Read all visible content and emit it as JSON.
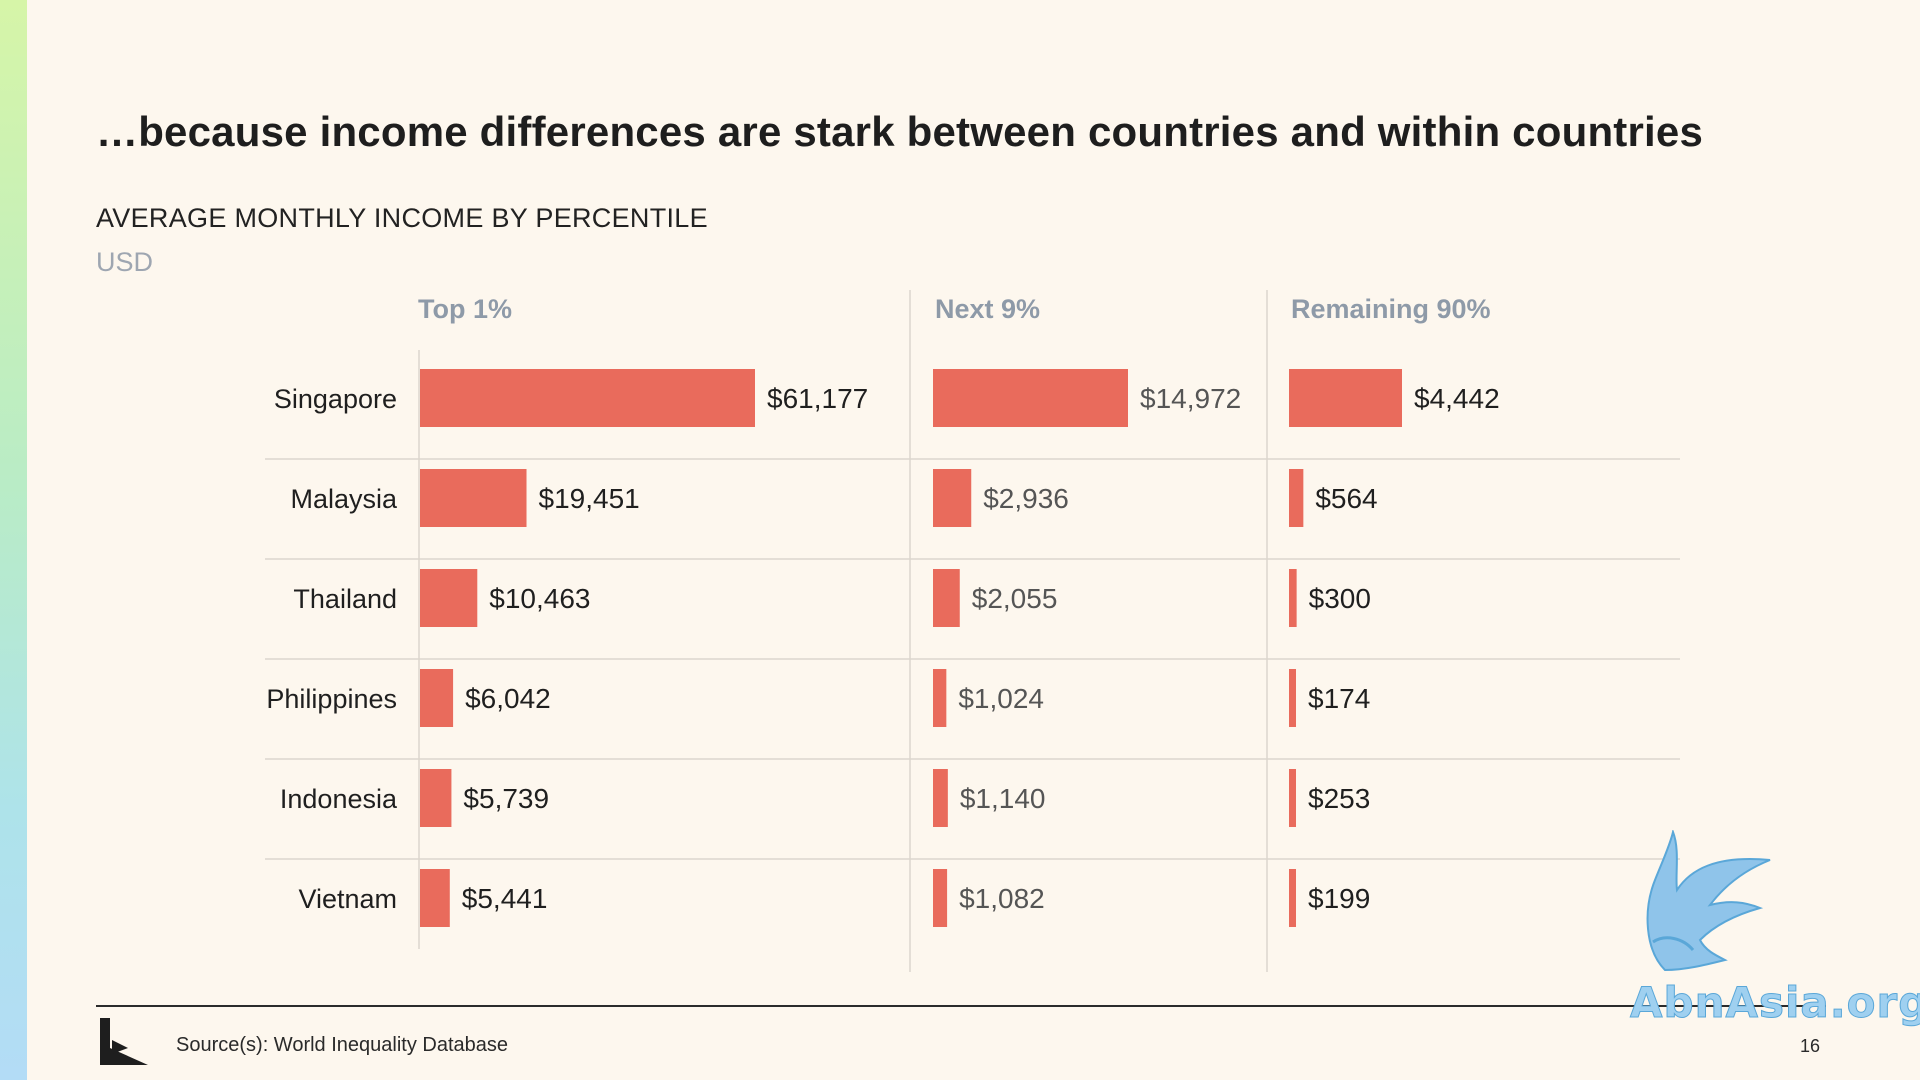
{
  "slide": {
    "title": "…because income differences are stark between countries and within countries",
    "source": "Source(s): World Inequality Database",
    "page_number": "16",
    "watermark": "AbnAsia.org"
  },
  "colors": {
    "bar": "#e96b5c",
    "background": "#fdf7ee",
    "muted_text": "#8e9aa8",
    "strong_text": "#1f1f1f",
    "grey_value_text": "#555555"
  },
  "chart_data": {
    "type": "bar",
    "orientation": "horizontal",
    "title": "AVERAGE MONTHLY INCOME BY PERCENTILE",
    "unit": "USD",
    "categories": [
      "Singapore",
      "Malaysia",
      "Thailand",
      "Philippines",
      "Indonesia",
      "Vietnam"
    ],
    "panels": [
      {
        "name": "Top 1%",
        "values": [
          61177,
          19451,
          10463,
          6042,
          5739,
          5441
        ],
        "labels": [
          "$61,177",
          "$19,451",
          "$10,463",
          "$6,042",
          "$5,739",
          "$5,441"
        ]
      },
      {
        "name": "Next 9%",
        "values": [
          14972,
          2936,
          2055,
          1024,
          1140,
          1082
        ],
        "labels": [
          "$14,972",
          "$2,936",
          "$2,055",
          "$1,024",
          "$1,140",
          "$1,082"
        ]
      },
      {
        "name": "Remaining 90%",
        "values": [
          4442,
          564,
          300,
          174,
          253,
          199
        ],
        "labels": [
          "$4,442",
          "$564",
          "$300",
          "$174",
          "$253",
          "$199"
        ]
      }
    ],
    "grid": true
  }
}
